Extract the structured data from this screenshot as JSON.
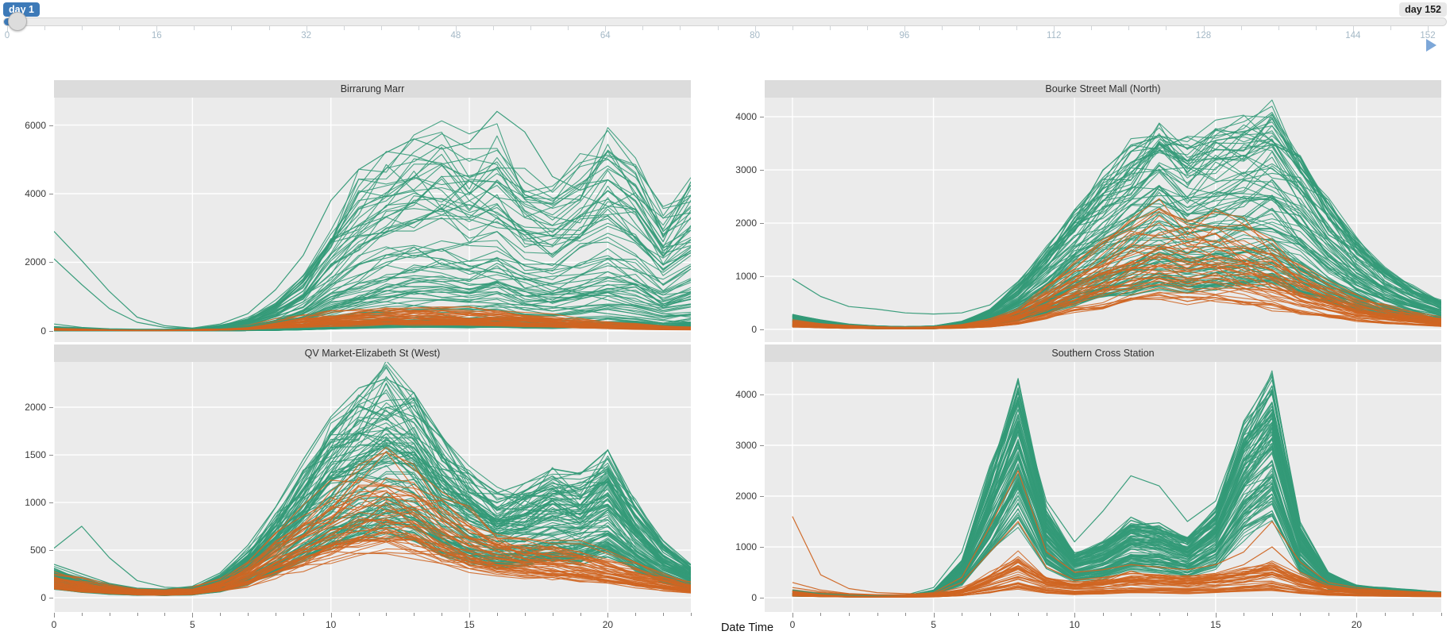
{
  "slider": {
    "value_label": "day 1",
    "max_label": "day 152",
    "min": 0,
    "max": 152,
    "value": 1,
    "major_ticks": [
      0,
      16,
      32,
      48,
      64,
      80,
      96,
      112,
      128,
      144,
      152
    ],
    "minor_tick_step": 4,
    "accent_color": "#3d7ab8",
    "badge_bg": "#e8e8e8",
    "tick_label_color": "#a4b8c6",
    "play_icon_color": "#7da7d8"
  },
  "xaxis": {
    "label": "Date Time",
    "ticks": [
      0,
      5,
      10,
      15,
      20
    ],
    "hours_start": 0,
    "hours_end": 23
  },
  "palette": {
    "green": "#339a77",
    "orange": "#cf6522",
    "plot_bg": "#ebebeb",
    "grid": "#ffffff",
    "title_bg": "#dcdcdc"
  },
  "chart_data": [
    {
      "type": "line",
      "title": "Birrarung Marr",
      "x_start": 0,
      "x_end": 23,
      "yticks": [
        0,
        2000,
        4000,
        6000
      ],
      "ylim": [
        0,
        6800
      ],
      "y_zero_frac": 0.954,
      "x_start_frac": 0,
      "series_groups": [
        {
          "name": "green-days",
          "color": "#339a77",
          "n": 108,
          "scale_min": 0.02,
          "scale_max": 1.0,
          "skew": 2.5,
          "jitter": 0.3,
          "profile": [
            120,
            80,
            50,
            40,
            40,
            60,
            150,
            350,
            800,
            1600,
            3000,
            4200,
            5000,
            5400,
            5500,
            5100,
            5600,
            4400,
            4000,
            4700,
            5600,
            4900,
            3300,
            4300
          ]
        },
        {
          "name": "orange-days",
          "color": "#cf6522",
          "n": 44,
          "scale_min": 0.3,
          "scale_max": 1.25,
          "skew": 1.0,
          "jitter": 0.35,
          "profile": [
            60,
            40,
            25,
            20,
            20,
            30,
            60,
            120,
            260,
            380,
            450,
            500,
            540,
            560,
            550,
            520,
            480,
            420,
            350,
            280,
            210,
            160,
            110,
            90
          ]
        }
      ],
      "outlier_series": [
        {
          "color": "#339a77",
          "values": [
            2900,
            2050,
            1150,
            400,
            150,
            80,
            80,
            120,
            250,
            400,
            700,
            900,
            1000,
            950,
            900,
            850,
            800,
            750,
            700,
            600,
            500,
            400,
            300,
            250
          ]
        },
        {
          "color": "#339a77",
          "values": [
            2100,
            1350,
            650,
            250,
            100,
            70,
            90,
            150,
            300,
            600,
            1100,
            1600,
            2000,
            2200,
            2100,
            1900,
            1700,
            1500,
            1300,
            1100,
            900,
            700,
            500,
            400
          ]
        },
        {
          "color": "#339a77",
          "values": [
            200,
            100,
            60,
            50,
            50,
            80,
            200,
            500,
            1200,
            2200,
            3800,
            4700,
            5200,
            5600,
            5300,
            5500,
            6400,
            5800,
            4500,
            4100,
            4400,
            3800,
            2600,
            4350
          ]
        }
      ]
    },
    {
      "type": "line",
      "title": "Bourke Street Mall (North)",
      "x_start": 0,
      "x_end": 23,
      "yticks": [
        0,
        1000,
        2000,
        3000,
        4000
      ],
      "ylim": [
        0,
        4360
      ],
      "y_zero_frac": 0.948,
      "x_start_frac": 0.041,
      "series_groups": [
        {
          "name": "green-days",
          "color": "#339a77",
          "n": 108,
          "scale_min": 0.22,
          "scale_max": 1.02,
          "skew": 1.5,
          "jitter": 0.22,
          "profile": [
            260,
            160,
            90,
            60,
            50,
            60,
            140,
            350,
            800,
            1400,
            2100,
            2700,
            3200,
            3700,
            3300,
            3500,
            3700,
            3900,
            3100,
            2300,
            1600,
            1100,
            750,
            500
          ]
        },
        {
          "name": "orange-days",
          "color": "#cf6522",
          "n": 44,
          "scale_min": 0.25,
          "scale_max": 1.0,
          "skew": 1.2,
          "jitter": 0.3,
          "profile": [
            170,
            110,
            70,
            50,
            40,
            50,
            90,
            180,
            400,
            800,
            1200,
            1600,
            2000,
            2250,
            2100,
            2150,
            1900,
            1550,
            1150,
            850,
            600,
            430,
            310,
            220
          ]
        }
      ],
      "outlier_series": [
        {
          "color": "#339a77",
          "values": [
            950,
            620,
            430,
            380,
            310,
            290,
            310,
            460,
            900,
            1500,
            2250,
            2850,
            3350,
            3650,
            3400,
            3550,
            3650,
            4050,
            3150,
            2350,
            1650,
            1150,
            780,
            520
          ]
        }
      ]
    },
    {
      "type": "line",
      "title": "QV Market-Elizabeth St (West)",
      "x_start": 0,
      "x_end": 23,
      "yticks": [
        0,
        500,
        1000,
        1500,
        2000
      ],
      "ylim": [
        0,
        2475
      ],
      "y_zero_frac": 0.943,
      "x_start_frac": 0,
      "series_groups": [
        {
          "name": "green-days",
          "color": "#339a77",
          "n": 108,
          "scale_min": 0.3,
          "scale_max": 1.0,
          "skew": 1.3,
          "jitter": 0.25,
          "profile": [
            300,
            200,
            130,
            90,
            80,
            100,
            220,
            480,
            850,
            1300,
            1750,
            2050,
            2250,
            2100,
            1600,
            1250,
            1050,
            1150,
            1300,
            1250,
            1500,
            950,
            550,
            330
          ]
        },
        {
          "name": "orange-days",
          "color": "#cf6522",
          "n": 44,
          "scale_min": 0.3,
          "scale_max": 1.0,
          "skew": 1.1,
          "jitter": 0.3,
          "profile": [
            260,
            190,
            130,
            95,
            85,
            105,
            190,
            380,
            650,
            900,
            1150,
            1350,
            1430,
            1320,
            1080,
            880,
            740,
            640,
            590,
            540,
            440,
            340,
            240,
            150
          ]
        }
      ],
      "outlier_series": [
        {
          "color": "#339a77",
          "values": [
            350,
            250,
            150,
            100,
            90,
            120,
            260,
            550,
            950,
            1450,
            1900,
            2200,
            2300,
            2150,
            1700,
            1300,
            1100,
            1200,
            1350,
            1300,
            1550,
            1000,
            600,
            350
          ]
        },
        {
          "color": "#339a77",
          "values": [
            520,
            750,
            420,
            180,
            110,
            100,
            180,
            400,
            750,
            1150,
            1550,
            1850,
            2000,
            1900,
            1450,
            1150,
            950,
            1050,
            1200,
            1150,
            1350,
            850,
            500,
            300
          ]
        }
      ]
    },
    {
      "type": "line",
      "title": "Southern Cross Station",
      "x_start": 0,
      "x_end": 23,
      "yticks": [
        0,
        1000,
        2000,
        3000,
        4000
      ],
      "ylim": [
        0,
        4640
      ],
      "y_zero_frac": 0.943,
      "x_start_frac": 0.041,
      "series_groups": [
        {
          "name": "green-days",
          "color": "#339a77",
          "n": 108,
          "scale_min": 0.35,
          "scale_max": 1.0,
          "skew": 0.85,
          "jitter": 0.18,
          "profile": [
            90,
            60,
            40,
            30,
            40,
            140,
            700,
            2400,
            4200,
            1700,
            850,
            1050,
            1500,
            1400,
            1150,
            1700,
            3300,
            4250,
            1400,
            480,
            240,
            190,
            150,
            110
          ]
        },
        {
          "name": "orange-days",
          "color": "#cf6522",
          "n": 40,
          "scale_min": 0.25,
          "scale_max": 1.1,
          "skew": 1.0,
          "jitter": 0.35,
          "profile": [
            130,
            90,
            60,
            45,
            45,
            70,
            160,
            420,
            750,
            380,
            270,
            330,
            420,
            400,
            370,
            420,
            520,
            640,
            380,
            220,
            160,
            130,
            100,
            85
          ]
        }
      ],
      "outlier_series": [
        {
          "color": "#339a77",
          "values": [
            150,
            80,
            50,
            40,
            50,
            200,
            900,
            2600,
            3900,
            1900,
            1100,
            1700,
            2400,
            2200,
            1500,
            1900,
            3400,
            4100,
            1300,
            450,
            230,
            180,
            140,
            100
          ]
        },
        {
          "color": "#cf6522",
          "values": [
            300,
            150,
            80,
            60,
            60,
            100,
            400,
            1400,
            2500,
            900,
            500,
            550,
            650,
            600,
            550,
            650,
            900,
            1500,
            700,
            300,
            200,
            150,
            120,
            100
          ]
        },
        {
          "color": "#cf6522",
          "values": [
            1600,
            450,
            180,
            100,
            80,
            70,
            120,
            250,
            400,
            300,
            250,
            280,
            320,
            300,
            280,
            320,
            380,
            450,
            300,
            180,
            130,
            110,
            90,
            80
          ]
        },
        {
          "color": "#cf6522",
          "values": [
            200,
            120,
            70,
            50,
            50,
            80,
            300,
            900,
            1500,
            600,
            350,
            400,
            480,
            450,
            420,
            480,
            650,
            1000,
            500,
            250,
            170,
            130,
            100,
            85
          ]
        }
      ]
    }
  ]
}
